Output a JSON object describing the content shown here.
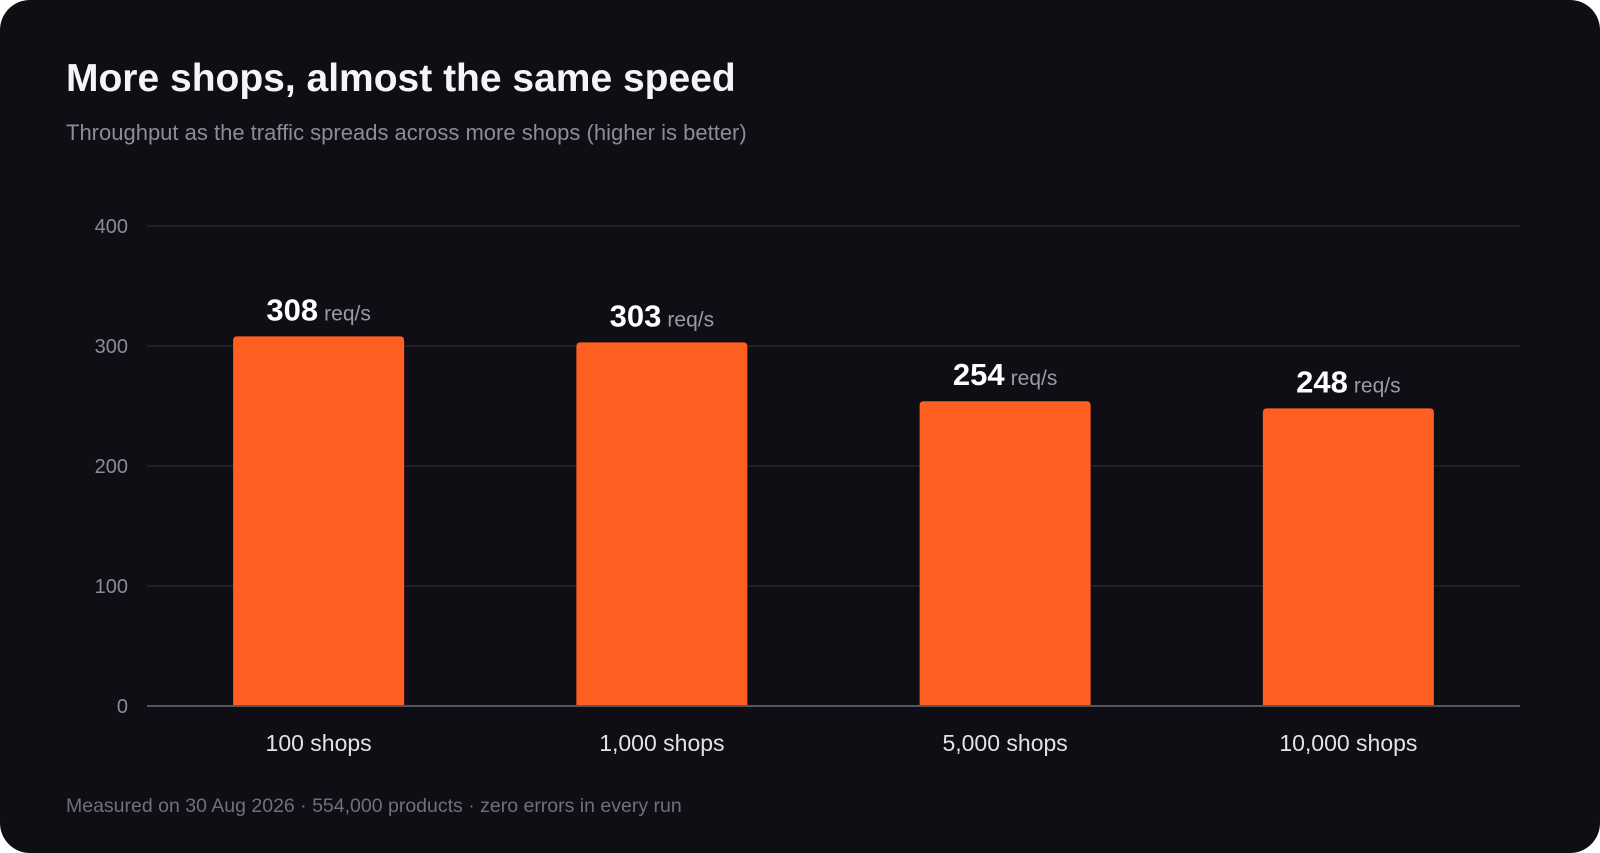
{
  "title": "More shops, almost the same speed",
  "subtitle": "Throughput as the traffic spreads across more shops (higher is better)",
  "footnote": "Measured on 30 Aug 2026 · 554,000 products · zero errors in every run",
  "colors": {
    "background": "#0e0e14",
    "bar": "#ff5f21",
    "gridline": "#2a2a33",
    "axis": "#55555f"
  },
  "chart_data": {
    "type": "bar",
    "categories": [
      "100 shops",
      "1,000 shops",
      "5,000 shops",
      "10,000 shops"
    ],
    "values": [
      308,
      303,
      254,
      248
    ],
    "data_labels": [
      "308",
      "303",
      "254",
      "248"
    ],
    "value_unit": "req/s",
    "ylim": [
      0,
      400
    ],
    "yticks": [
      "0",
      "100",
      "200",
      "300",
      "400"
    ],
    "ytick_values": [
      0,
      100,
      200,
      300,
      400
    ],
    "grid": true,
    "legend": "none"
  }
}
